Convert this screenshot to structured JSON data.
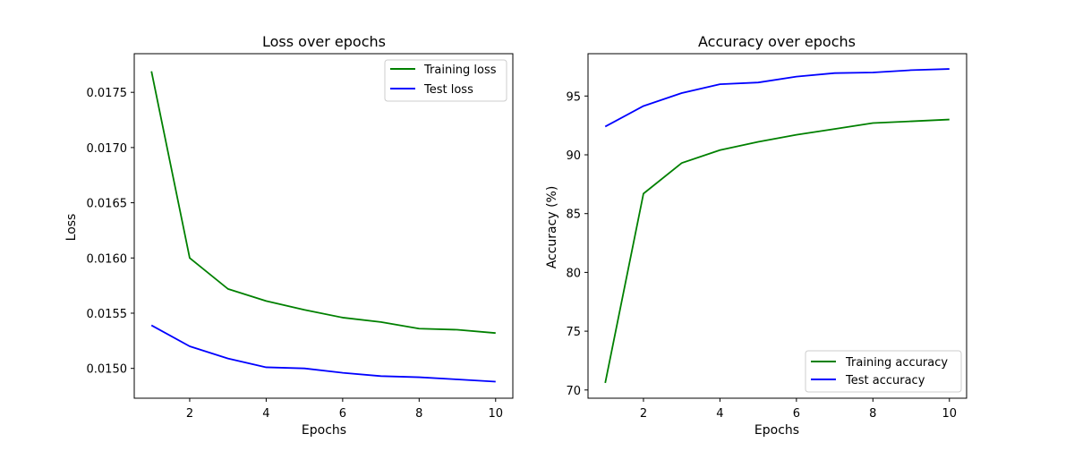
{
  "chart_data": [
    {
      "type": "line",
      "title": "Loss over epochs",
      "xlabel": "Epochs",
      "ylabel": "Loss",
      "x": [
        1,
        2,
        3,
        4,
        5,
        6,
        7,
        8,
        9,
        10
      ],
      "xlim": [
        0.55,
        10.45
      ],
      "ylim": [
        0.01473,
        0.01785
      ],
      "xticks": [
        2,
        4,
        6,
        8,
        10
      ],
      "xtick_labels": [
        "2",
        "4",
        "6",
        "8",
        "10"
      ],
      "yticks": [
        0.015,
        0.0155,
        0.016,
        0.0165,
        0.017,
        0.0175
      ],
      "ytick_labels": [
        "0.0150",
        "0.0155",
        "0.0160",
        "0.0165",
        "0.0170",
        "0.0175"
      ],
      "grid": false,
      "legend_position": "upper-right",
      "series": [
        {
          "name": "Training loss",
          "color": "#008000",
          "values": [
            0.01769,
            0.016,
            0.01572,
            0.01561,
            0.01553,
            0.01546,
            0.01542,
            0.01536,
            0.01535,
            0.01532
          ]
        },
        {
          "name": "Test loss",
          "color": "#0000ff",
          "values": [
            0.01539,
            0.0152,
            0.01509,
            0.01501,
            0.015,
            0.01496,
            0.01493,
            0.01492,
            0.0149,
            0.01488
          ]
        }
      ]
    },
    {
      "type": "line",
      "title": "Accuracy over epochs",
      "xlabel": "Epochs",
      "ylabel": "Accuracy (%)",
      "x": [
        1,
        2,
        3,
        4,
        5,
        6,
        7,
        8,
        9,
        10
      ],
      "xlim": [
        0.55,
        10.45
      ],
      "ylim": [
        69.3,
        98.6
      ],
      "xticks": [
        2,
        4,
        6,
        8,
        10
      ],
      "xtick_labels": [
        "2",
        "4",
        "6",
        "8",
        "10"
      ],
      "yticks": [
        70,
        75,
        80,
        85,
        90,
        95
      ],
      "ytick_labels": [
        "70",
        "75",
        "80",
        "85",
        "90",
        "95"
      ],
      "grid": false,
      "legend_position": "lower-right",
      "series": [
        {
          "name": "Training accuracy",
          "color": "#008000",
          "values": [
            70.6,
            86.7,
            89.3,
            90.4,
            91.1,
            91.7,
            92.2,
            92.7,
            92.85,
            93.0
          ]
        },
        {
          "name": "Test accuracy",
          "color": "#0000ff",
          "values": [
            92.4,
            94.15,
            95.25,
            96.0,
            96.15,
            96.65,
            96.95,
            97.0,
            97.2,
            97.3
          ]
        }
      ]
    }
  ]
}
